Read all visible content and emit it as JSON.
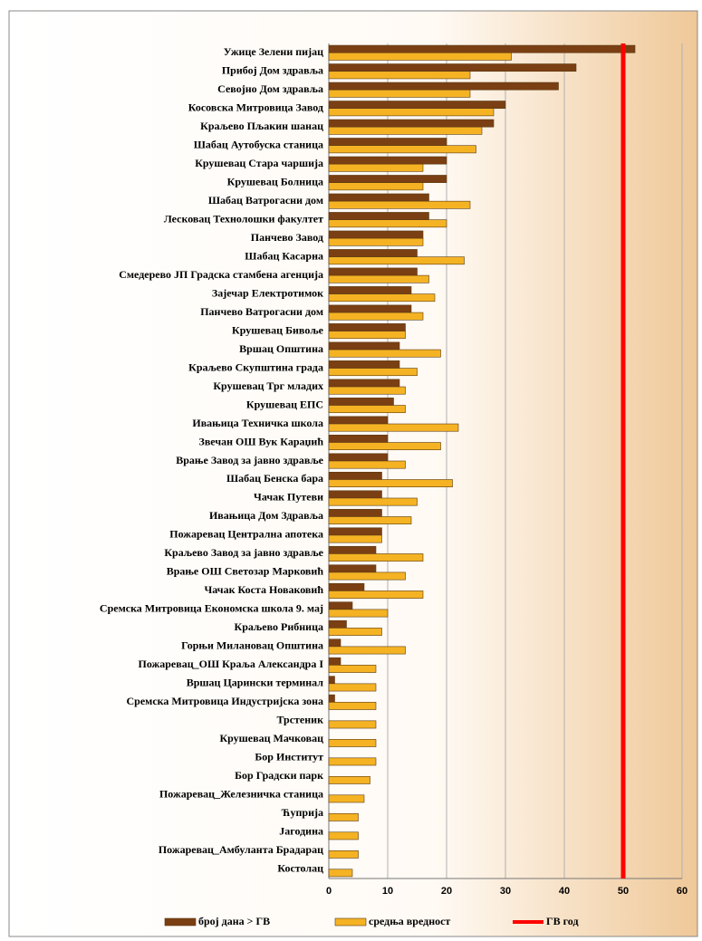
{
  "chart_data": {
    "type": "bar",
    "orientation": "horizontal",
    "categories": [
      "Ужице Зелени пијац",
      "Прибој Дом здравља",
      "Севојно Дом здравља",
      "Косовска Митровица Завод",
      "Краљево Пљакин шанац",
      "Шабац Аутобуска станица",
      "Крушевац Стара чаршија",
      "Крушевац Болница",
      "Шабац Ватрогасни дом",
      "Лесковац Технолошки факултет",
      "Панчево Завод",
      "Шабац Касарна",
      "Смедерево ЈП Градска стамбена агенција",
      "Зајечар Електротимок",
      "Панчево Ватрогасни дом",
      "Крушевац Бивоље",
      "Вршац Општина",
      "Краљево Скупштина града",
      "Крушевац Трг младих",
      "Крушевац ЕПС",
      "Ивањица Техничка школа",
      "Звечан ОШ Вук Караџић",
      "Врање Завод за јавно здравље",
      "Шабац Бенска бара",
      "Чачак Путеви",
      "Ивањица Дом Здравља",
      "Пожаревац Централна апотека",
      "Краљево Завод за јавно здравље",
      "Врање ОШ Светозар Марковић",
      "Чачак Коста Новаковић",
      "Сремска Митровица Економска школа 9. мај",
      "Краљево Рибница",
      "Горњи Милановац Општина",
      "Пожаревац_ОШ Краља Александра I",
      "Вршац Царински терминал",
      "Сремска Митровица Индустријска зона",
      "Трстеник",
      "Крушевац Мачковац",
      "Бор Институт",
      "Бор Градски парк",
      "Пожаревац_Железничка станица",
      "Ћуприја",
      "Јагодина",
      "Пожаревац_Амбуланта Брадарац",
      "Костолац"
    ],
    "series": [
      {
        "name": "број дана > ГВ",
        "color": "#7b3f14",
        "values": [
          52,
          42,
          39,
          30,
          28,
          20,
          20,
          20,
          17,
          17,
          16,
          15,
          15,
          14,
          14,
          13,
          12,
          12,
          12,
          11,
          10,
          10,
          10,
          9,
          9,
          9,
          9,
          8,
          8,
          6,
          4,
          3,
          2,
          2,
          1,
          1,
          0,
          0,
          0,
          0,
          0,
          0,
          0,
          0,
          0
        ]
      },
      {
        "name": "средња вредност",
        "color": "#f5b324",
        "values": [
          31,
          24,
          24,
          28,
          26,
          25,
          16,
          16,
          24,
          20,
          16,
          23,
          17,
          18,
          16,
          13,
          19,
          15,
          13,
          13,
          22,
          19,
          13,
          21,
          15,
          14,
          9,
          16,
          13,
          16,
          10,
          9,
          13,
          8,
          8,
          8,
          8,
          8,
          8,
          7,
          6,
          5,
          5,
          5,
          4
        ]
      }
    ],
    "reference_lines": [
      {
        "name": "ГВ год",
        "value": 50,
        "color": "#ff0000"
      }
    ],
    "xlim": [
      0,
      60
    ],
    "xticks": [
      0,
      10,
      20,
      30,
      40,
      50,
      60
    ],
    "grid": true,
    "legend": "bottom"
  }
}
